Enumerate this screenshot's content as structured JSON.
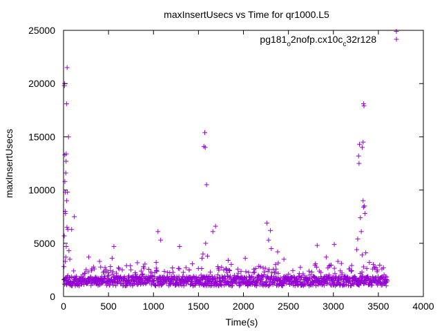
{
  "colors": {
    "series": "#9400d3",
    "axis": "#000000",
    "background": "#ffffff"
  },
  "chart_data": {
    "type": "scatter",
    "title": "maxInsertUsecs vs Time for qr1000.L5",
    "xlabel": "Time(s)",
    "ylabel": "maxInsertUsecs",
    "xlim": [
      0,
      4000
    ],
    "ylim": [
      0,
      25000
    ],
    "xticks": [
      0,
      500,
      1000,
      1500,
      2000,
      2500,
      3000,
      3500,
      4000
    ],
    "yticks": [
      0,
      5000,
      10000,
      15000,
      20000,
      25000
    ],
    "xtick_labels": [
      "0",
      "500",
      "1000",
      "1500",
      "2000",
      "2500",
      "3000",
      "3500",
      "4000"
    ],
    "ytick_labels": [
      "0",
      "5000",
      "10000",
      "15000",
      "20000",
      "25000"
    ],
    "grid": false,
    "legend_position": "top-right",
    "legend": {
      "base": "pg181",
      "sub1": "o",
      "mid": "2nofp.cx10c",
      "sub2": "c",
      "tail": "32r128"
    },
    "marker": "+",
    "series": [
      {
        "name": "pg181_o2nofp.cx10c_c32r128",
        "outliers": [
          [
            5,
            2800
          ],
          [
            8,
            5700
          ],
          [
            10,
            19800
          ],
          [
            12,
            20000
          ],
          [
            14,
            13300
          ],
          [
            15,
            10800
          ],
          [
            18,
            8000
          ],
          [
            20,
            9800
          ],
          [
            22,
            7800
          ],
          [
            25,
            11600
          ],
          [
            28,
            12700
          ],
          [
            30,
            13400
          ],
          [
            33,
            18100
          ],
          [
            35,
            9000
          ],
          [
            38,
            6500
          ],
          [
            40,
            21500
          ],
          [
            44,
            9800
          ],
          [
            48,
            6300
          ],
          [
            55,
            15000
          ],
          [
            60,
            4300
          ],
          [
            70,
            3500
          ],
          [
            90,
            6300
          ],
          [
            120,
            7500
          ],
          [
            20,
            3300
          ],
          [
            25,
            3700
          ],
          [
            30,
            4700
          ],
          [
            280,
            3700
          ],
          [
            400,
            3300
          ],
          [
            540,
            3600
          ],
          [
            560,
            4700
          ],
          [
            700,
            2900
          ],
          [
            1030,
            3200
          ],
          [
            1050,
            6100
          ],
          [
            1080,
            5300
          ],
          [
            1290,
            4700
          ],
          [
            1540,
            3600
          ],
          [
            1550,
            4000
          ],
          [
            1560,
            14100
          ],
          [
            1570,
            15400
          ],
          [
            1575,
            14000
          ],
          [
            1580,
            5000
          ],
          [
            1590,
            10500
          ],
          [
            1600,
            3800
          ],
          [
            1660,
            6100
          ],
          [
            1690,
            6600
          ],
          [
            1830,
            3400
          ],
          [
            2020,
            3600
          ],
          [
            2260,
            6900
          ],
          [
            2280,
            5300
          ],
          [
            2300,
            6200
          ],
          [
            2310,
            4500
          ],
          [
            2380,
            4200
          ],
          [
            2450,
            3500
          ],
          [
            2820,
            4800
          ],
          [
            2920,
            3700
          ],
          [
            3010,
            4900
          ],
          [
            3050,
            3300
          ],
          [
            3260,
            4400
          ],
          [
            3270,
            5400
          ],
          [
            3280,
            13200
          ],
          [
            3285,
            12500
          ],
          [
            3290,
            14300
          ],
          [
            3300,
            7400
          ],
          [
            3310,
            6100
          ],
          [
            3320,
            14000
          ],
          [
            3330,
            14500
          ],
          [
            3335,
            18100
          ],
          [
            3340,
            17900
          ],
          [
            3330,
            9000
          ],
          [
            3335,
            8400
          ],
          [
            3345,
            8500
          ],
          [
            3350,
            7800
          ],
          [
            3320,
            3900
          ],
          [
            3360,
            4100
          ],
          [
            3400,
            3200
          ],
          [
            3700,
            24900
          ]
        ]
      }
    ]
  }
}
